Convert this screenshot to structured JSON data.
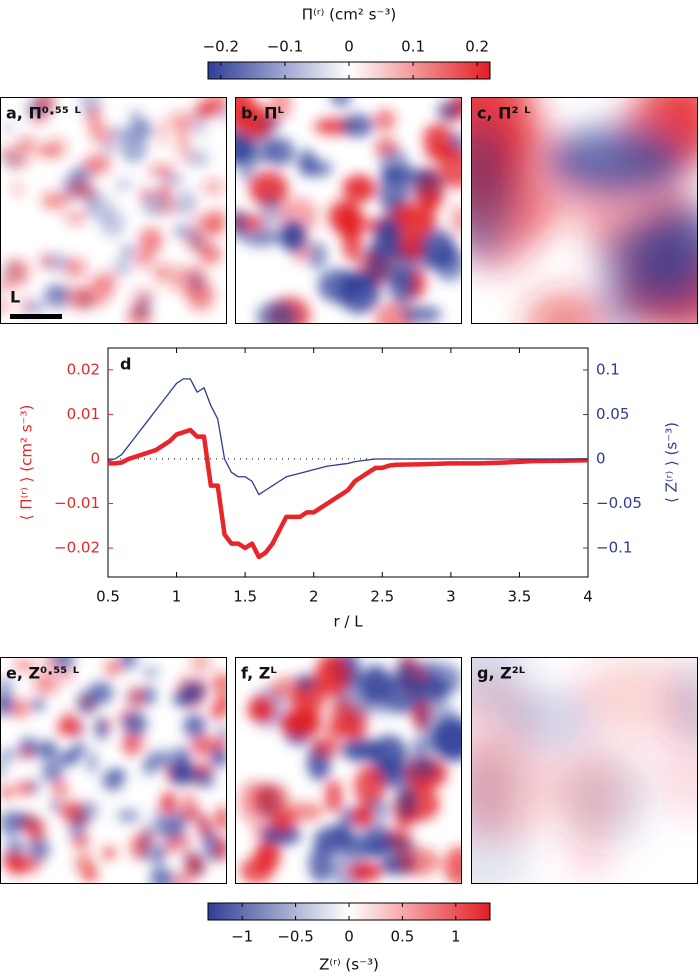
{
  "colorbar_top": {
    "title": "Π⁽ʳ⁾ (cm² s⁻³)",
    "lim": [
      -0.22,
      0.22
    ],
    "ticks": [
      {
        "value": -0.2,
        "label": "−0.2"
      },
      {
        "value": -0.1,
        "label": "−0.1"
      },
      0,
      0.1,
      0.2
    ],
    "colors": [
      "#2f3f98",
      "#ffffff",
      "#e31e24"
    ]
  },
  "panels_top": [
    {
      "label": "a, Π⁰·⁵⁵ ᴸ"
    },
    {
      "label": "b, Πᴸ"
    },
    {
      "label": "c, Π² ᴸ"
    }
  ],
  "scale_bar_label": "L",
  "chart_data": {
    "type": "line",
    "panel_label": "d",
    "xlabel": "r / L",
    "ylabel": "⟨ Π⁽ʳ⁾ ⟩ (cm² s⁻³)",
    "y2label": "⟨ Z⁽ʳ⁾ ⟩ (s⁻³)",
    "x": [
      0.5,
      0.55,
      0.6,
      0.65,
      0.7,
      0.75,
      0.8,
      0.85,
      0.9,
      0.95,
      1.0,
      1.05,
      1.1,
      1.15,
      1.2,
      1.25,
      1.3,
      1.35,
      1.4,
      1.45,
      1.5,
      1.55,
      1.6,
      1.65,
      1.7,
      1.75,
      1.8,
      1.85,
      1.9,
      1.95,
      2.0,
      2.05,
      2.1,
      2.15,
      2.2,
      2.25,
      2.3,
      2.35,
      2.4,
      2.45,
      2.5,
      2.55,
      2.6,
      2.8,
      3.0,
      3.2,
      3.4,
      3.6,
      3.8,
      4.0
    ],
    "series": [
      {
        "name": "⟨ Π⁽ʳ⁾ ⟩",
        "color": "#e8262a",
        "values": [
          -0.001,
          -0.001,
          -0.0008,
          0,
          0.0005,
          0.001,
          0.0015,
          0.002,
          0.003,
          0.004,
          0.0055,
          0.006,
          0.0065,
          0.005,
          0.005,
          -0.006,
          -0.006,
          -0.017,
          -0.019,
          -0.019,
          -0.02,
          -0.019,
          -0.022,
          -0.021,
          -0.019,
          -0.016,
          -0.013,
          -0.013,
          -0.013,
          -0.012,
          -0.012,
          -0.011,
          -0.01,
          -0.009,
          -0.008,
          -0.007,
          -0.005,
          -0.004,
          -0.003,
          -0.002,
          -0.002,
          -0.0015,
          -0.0013,
          -0.0012,
          -0.001,
          -0.001,
          -0.0008,
          -0.0005,
          -0.0004,
          -0.0003
        ]
      },
      {
        "name": "⟨ Z⁽ʳ⁾ ⟩",
        "color": "#2d3c8e",
        "axis": "y2",
        "values": [
          -0.002,
          0,
          0.005,
          0.015,
          0.025,
          0.035,
          0.045,
          0.055,
          0.065,
          0.075,
          0.085,
          0.09,
          0.09,
          0.075,
          0.08,
          0.06,
          0.045,
          0,
          -0.015,
          -0.02,
          -0.02,
          -0.025,
          -0.04,
          -0.035,
          -0.03,
          -0.025,
          -0.02,
          -0.018,
          -0.016,
          -0.014,
          -0.012,
          -0.01,
          -0.008,
          -0.007,
          -0.006,
          -0.005,
          -0.003,
          -0.002,
          -0.001,
          0,
          0,
          0,
          0,
          0,
          0,
          0,
          0,
          0,
          0,
          0
        ]
      }
    ],
    "xlim": [
      0.5,
      4
    ],
    "xticks": [
      0.5,
      1,
      1.5,
      2,
      2.5,
      3,
      3.5,
      4
    ],
    "ylim": [
      -0.0265,
      0.0249
    ],
    "yticks": [
      {
        "value": -0.02,
        "label": "−0.02"
      },
      {
        "value": -0.01,
        "label": "−0.01"
      },
      0,
      0.01,
      0.02
    ],
    "y2lim": [
      -0.1326,
      0.1247
    ],
    "y2ticks": [
      {
        "value": -0.1,
        "label": "−0.1"
      },
      {
        "value": -0.05,
        "label": "−0.05"
      },
      0,
      0.05,
      0.1
    ]
  },
  "panels_bottom": [
    {
      "label": "e, Z⁰·⁵⁵ ᴸ"
    },
    {
      "label": "f, Zᴸ"
    },
    {
      "label": "g, Z²ᴸ"
    }
  ],
  "colorbar_bottom": {
    "title": "Z⁽ʳ⁾ (s⁻³)",
    "lim": [
      -1.32,
      1.32
    ],
    "ticks": [
      {
        "value": -1,
        "label": "−1"
      },
      {
        "value": -0.5,
        "label": "−0.5"
      },
      0,
      0.5,
      1
    ],
    "colors": [
      "#2f3f98",
      "#ffffff",
      "#e31e24"
    ]
  }
}
